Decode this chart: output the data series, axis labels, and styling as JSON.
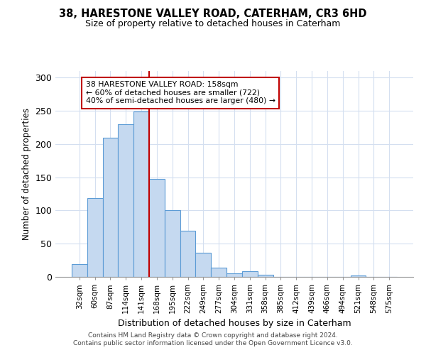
{
  "title1": "38, HARESTONE VALLEY ROAD, CATERHAM, CR3 6HD",
  "title2": "Size of property relative to detached houses in Caterham",
  "xlabel": "Distribution of detached houses by size in Caterham",
  "ylabel": "Number of detached properties",
  "categories": [
    "32sqm",
    "60sqm",
    "87sqm",
    "114sqm",
    "141sqm",
    "168sqm",
    "195sqm",
    "222sqm",
    "249sqm",
    "277sqm",
    "304sqm",
    "331sqm",
    "358sqm",
    "385sqm",
    "412sqm",
    "439sqm",
    "466sqm",
    "494sqm",
    "521sqm",
    "548sqm",
    "575sqm"
  ],
  "values": [
    19,
    119,
    209,
    230,
    249,
    147,
    101,
    70,
    36,
    14,
    5,
    9,
    3,
    0,
    0,
    0,
    0,
    0,
    2,
    0,
    0
  ],
  "bar_color": "#c5d9f0",
  "bar_edge_color": "#5b9bd5",
  "vline_color": "#c00000",
  "annotation_text": "38 HARESTONE VALLEY ROAD: 158sqm\n← 60% of detached houses are smaller (722)\n40% of semi-detached houses are larger (480) →",
  "annotation_box_color": "#ffffff",
  "annotation_box_edge_color": "#c00000",
  "ylim": [
    0,
    310
  ],
  "yticks": [
    0,
    50,
    100,
    150,
    200,
    250,
    300
  ],
  "footer1": "Contains HM Land Registry data © Crown copyright and database right 2024.",
  "footer2": "Contains public sector information licensed under the Open Government Licence v3.0.",
  "grid_color": "#d4dff0"
}
